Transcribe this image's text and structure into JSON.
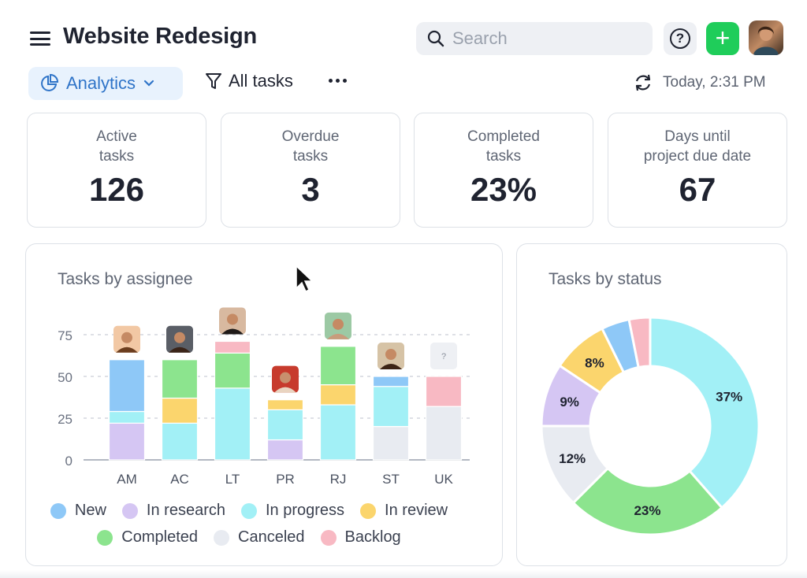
{
  "header": {
    "title": "Website Redesign",
    "search_placeholder": "Search",
    "help_label": "?",
    "add_label": "+"
  },
  "toolbar": {
    "view_label": "Analytics",
    "filter_label": "All tasks",
    "timestamp": "Today, 2:31 PM"
  },
  "stats": [
    {
      "title": "Active\ntasks",
      "value": "126"
    },
    {
      "title": "Overdue\ntasks",
      "value": "3"
    },
    {
      "title": "Completed\ntasks",
      "value": "23%"
    },
    {
      "title": "Days until\nproject due date",
      "value": "67"
    }
  ],
  "colors": {
    "New": "#8ec8f7",
    "In research": "#d5c6f3",
    "In progress": "#a2f0f6",
    "In review": "#fbd56d",
    "Completed": "#8ce48e",
    "Canceled": "#e8ebf1",
    "Backlog": "#f8b9c3"
  },
  "chart_data": [
    {
      "type": "bar",
      "title": "Tasks by assignee",
      "categories": [
        "AM",
        "AC",
        "LT",
        "PR",
        "RJ",
        "ST",
        "UK"
      ],
      "ylim": [
        0,
        80
      ],
      "yticks": [
        0,
        25,
        50,
        75
      ],
      "stacked": true,
      "series": [
        {
          "name": "In research",
          "values": [
            22,
            0,
            0,
            12,
            0,
            0,
            0
          ]
        },
        {
          "name": "Canceled",
          "values": [
            0,
            0,
            0,
            0,
            0,
            20,
            32
          ]
        },
        {
          "name": "In progress",
          "values": [
            0,
            22,
            43,
            18,
            33,
            24,
            0
          ]
        },
        {
          "name": "In review",
          "values": [
            0,
            15,
            0,
            6,
            12,
            0,
            0
          ]
        },
        {
          "name": "Completed",
          "values": [
            0,
            23,
            21,
            0,
            23,
            0,
            0
          ]
        },
        {
          "name": "New",
          "values": [
            31,
            0,
            0,
            0,
            0,
            6,
            0
          ]
        },
        {
          "name": "Backlog",
          "values": [
            0,
            0,
            7,
            0,
            0,
            0,
            18
          ]
        }
      ],
      "extra_in_progress_segment": {
        "category": "AM",
        "value": 7
      },
      "unknown_avatar_label": "?",
      "legend": [
        "New",
        "In research",
        "In progress",
        "In review",
        "Completed",
        "Canceled",
        "Backlog"
      ],
      "legend_placement": "bottom",
      "grid": true
    },
    {
      "type": "pie",
      "title": "Tasks by status",
      "slices": [
        {
          "name": "In progress",
          "value": 37,
          "label": "37%"
        },
        {
          "name": "Completed",
          "value": 23,
          "label": "23%"
        },
        {
          "name": "Canceled",
          "value": 12,
          "label": "12%"
        },
        {
          "name": "In research",
          "value": 9,
          "label": "9%"
        },
        {
          "name": "In review",
          "value": 8,
          "label": "8%"
        },
        {
          "name": "New",
          "value": 4,
          "label": ""
        },
        {
          "name": "Backlog",
          "value": 3,
          "label": ""
        }
      ]
    }
  ]
}
